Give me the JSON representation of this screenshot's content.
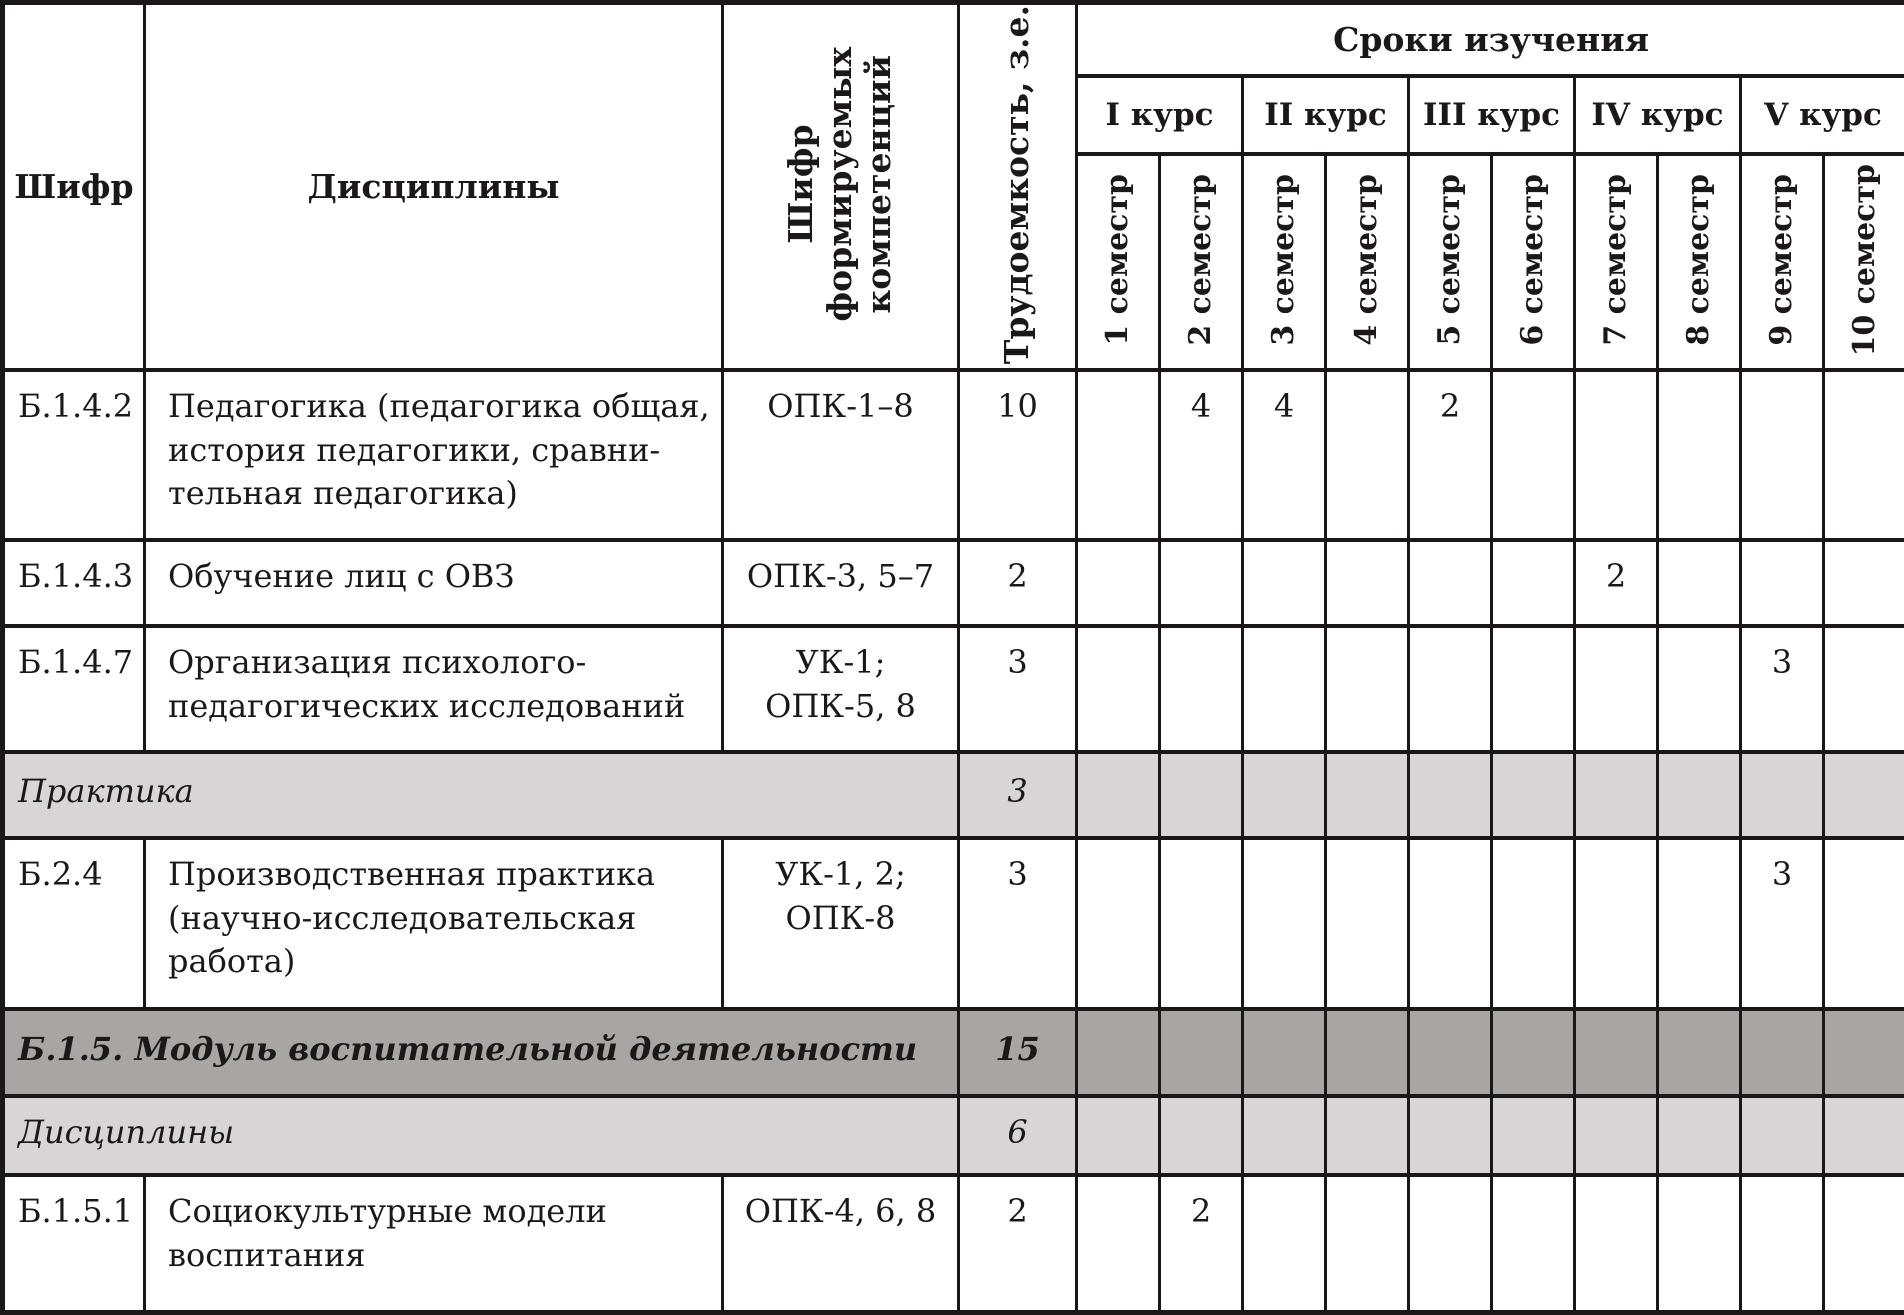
{
  "table_header": {
    "code": "Шифр",
    "disciplines": "Дисциплины",
    "competencies": "Шифр\nформируемых\nкомпетенций",
    "workload": "Трудоемкость, з.е.",
    "study_terms": "Сроки изучения",
    "courses": [
      "I курс",
      "II курс",
      "III курс",
      "IV курс",
      "V курс"
    ],
    "semesters": [
      "1 семестр",
      "2 семестр",
      "3 семестр",
      "4 семестр",
      "5 семестр",
      "6 семестр",
      "7 семестр",
      "8 семестр",
      "9 семестр",
      "10 семестр"
    ]
  },
  "rows": [
    {
      "type": "discipline",
      "code": "Б.1.4.2",
      "name": "Педагогика (педагогика общая,\nистория педагогики, сравни-\nтельная педагогика)",
      "competencies": "ОПК-1–8",
      "workload": "10",
      "semesters": [
        "",
        "4",
        "4",
        "",
        "2",
        "",
        "",
        "",
        "",
        ""
      ]
    },
    {
      "type": "discipline",
      "code": "Б.1.4.3",
      "name": "Обучение лиц с ОВЗ",
      "competencies": "ОПК-3, 5–7",
      "workload": "2",
      "semesters": [
        "",
        "",
        "",
        "",
        "",
        "",
        "2",
        "",
        "",
        ""
      ]
    },
    {
      "type": "discipline",
      "code": "Б.1.4.7",
      "name": "Организация психолого-\nпедагогических исследований",
      "competencies": "УК-1;\nОПК-5, 8",
      "workload": "3",
      "semesters": [
        "",
        "",
        "",
        "",
        "",
        "",
        "",
        "",
        "3",
        ""
      ]
    },
    {
      "type": "section-light",
      "title": "Практика",
      "workload": "3",
      "semesters": [
        "",
        "",
        "",
        "",
        "",
        "",
        "",
        "",
        "",
        ""
      ]
    },
    {
      "type": "discipline",
      "code": "Б.2.4",
      "name": "Производственная практика\n(научно-исследовательская\nработа)",
      "competencies": "УК-1, 2;\nОПК-8",
      "workload": "3",
      "semesters": [
        "",
        "",
        "",
        "",
        "",
        "",
        "",
        "",
        "3",
        ""
      ]
    },
    {
      "type": "section-dark",
      "title": "Б.1.5. Модуль воспитательной деятельности",
      "workload": "15",
      "semesters": [
        "",
        "",
        "",
        "",
        "",
        "",
        "",
        "",
        "",
        ""
      ]
    },
    {
      "type": "section-light",
      "title": "Дисциплины",
      "workload": "6",
      "semesters": [
        "",
        "",
        "",
        "",
        "",
        "",
        "",
        "",
        "",
        ""
      ]
    },
    {
      "type": "discipline",
      "code": "Б.1.5.1",
      "name": "Социокультурные модели\nвоспитания",
      "competencies": "ОПК-4, 6, 8",
      "workload": "2",
      "semesters": [
        "",
        "2",
        "",
        "",
        "",
        "",
        "",
        "",
        "",
        ""
      ]
    }
  ],
  "colors": {
    "section_light": "#d7d5d5",
    "section_dark": "#a8a5a5",
    "border": "#1a1718",
    "text": "#1b1819"
  }
}
